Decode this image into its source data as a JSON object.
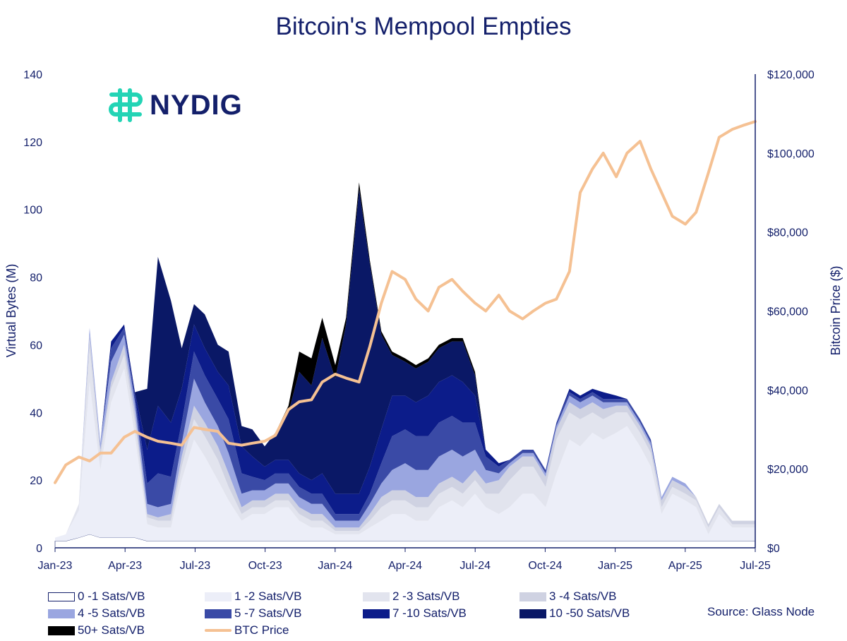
{
  "page": {
    "source": "Source: Glass Node"
  },
  "logo": {
    "text": "NYDIG",
    "icon": "nydig-logo-icon",
    "color": "#23d4b5"
  },
  "colors": {
    "band_0_1": "#ffffff",
    "band_1_2": "#eceef8",
    "band_2_3": "#e2e4ee",
    "band_3_4": "#cfd2e2",
    "band_4_5": "#9aa6e0",
    "band_5_7": "#3a4aa6",
    "band_7_10": "#0c1c8a",
    "band_10_50": "#0a1866",
    "band_50p": "#000000",
    "btc_price": "#f5c193",
    "text": "#14206b"
  },
  "chart_data": {
    "type": "area",
    "title": "Bitcoin's Mempool Empties",
    "ylabel": "Virtual Bytes (M)",
    "y2label": "Bitcoin Price ($)",
    "ylim": [
      0,
      140
    ],
    "y2lim": [
      0,
      120000
    ],
    "yticks": [
      "0",
      "20",
      "40",
      "60",
      "80",
      "100",
      "120",
      "140"
    ],
    "y2ticks": [
      "$0",
      "$20,000",
      "$40,000",
      "$60,000",
      "$80,000",
      "$100,000",
      "$120,000"
    ],
    "xlim": [
      "2023-01-01",
      "2025-07-01"
    ],
    "xticks": [
      "Jan-23",
      "Apr-23",
      "Jul-23",
      "Oct-23",
      "Jan-24",
      "Apr-24",
      "Jul-24",
      "Oct-24",
      "Jan-25",
      "Apr-25",
      "Jul-25"
    ],
    "grid": false,
    "legend_position": "bottom",
    "x": [
      "2023-01-01",
      "2023-01-15",
      "2023-02-01",
      "2023-02-15",
      "2023-03-01",
      "2023-03-15",
      "2023-04-01",
      "2023-04-15",
      "2023-05-01",
      "2023-05-15",
      "2023-06-01",
      "2023-06-15",
      "2023-07-01",
      "2023-07-15",
      "2023-08-01",
      "2023-08-15",
      "2023-09-01",
      "2023-09-15",
      "2023-10-01",
      "2023-10-15",
      "2023-11-01",
      "2023-11-15",
      "2023-12-01",
      "2023-12-15",
      "2024-01-01",
      "2024-01-15",
      "2024-02-01",
      "2024-02-15",
      "2024-03-01",
      "2024-03-15",
      "2024-04-01",
      "2024-04-15",
      "2024-05-01",
      "2024-05-15",
      "2024-06-01",
      "2024-06-15",
      "2024-07-01",
      "2024-07-15",
      "2024-08-01",
      "2024-08-15",
      "2024-09-01",
      "2024-09-15",
      "2024-10-01",
      "2024-10-15",
      "2024-11-01",
      "2024-11-15",
      "2024-12-01",
      "2024-12-15",
      "2025-01-01",
      "2025-01-15",
      "2025-02-01",
      "2025-02-15",
      "2025-03-01",
      "2025-03-15",
      "2025-04-01",
      "2025-04-15",
      "2025-05-01",
      "2025-05-15",
      "2025-06-01",
      "2025-06-15",
      "2025-07-01"
    ],
    "series": [
      {
        "name": "0 -1 Sats/VB",
        "color": "#ffffff",
        "values": [
          2,
          2,
          3,
          4,
          3,
          3,
          3,
          3,
          2,
          2,
          2,
          2,
          2,
          2,
          2,
          2,
          2,
          2,
          2,
          2,
          2,
          2,
          2,
          2,
          2,
          2,
          2,
          2,
          2,
          2,
          2,
          2,
          2,
          2,
          2,
          2,
          2,
          2,
          2,
          2,
          2,
          2,
          2,
          2,
          2,
          2,
          2,
          2,
          2,
          2,
          2,
          2,
          2,
          2,
          2,
          2,
          2,
          2,
          2,
          2,
          2
        ]
      },
      {
        "name": "1 -2 Sats/VB",
        "color": "#eceef8",
        "values": [
          1,
          2,
          8,
          45,
          20,
          40,
          50,
          30,
          5,
          4,
          4,
          18,
          30,
          25,
          18,
          12,
          6,
          8,
          8,
          10,
          10,
          6,
          4,
          4,
          2,
          2,
          2,
          4,
          6,
          8,
          8,
          6,
          6,
          10,
          12,
          10,
          14,
          10,
          8,
          10,
          14,
          14,
          10,
          20,
          30,
          28,
          32,
          30,
          32,
          34,
          28,
          22,
          8,
          14,
          12,
          10,
          2,
          8,
          4,
          4,
          4
        ]
      },
      {
        "name": "2 -3 Sats/VB",
        "color": "#e2e4ee",
        "values": [
          0,
          0,
          2,
          10,
          4,
          4,
          4,
          4,
          2,
          2,
          2,
          4,
          6,
          6,
          6,
          4,
          2,
          2,
          2,
          2,
          2,
          2,
          2,
          2,
          1,
          1,
          1,
          2,
          4,
          4,
          4,
          4,
          4,
          4,
          4,
          4,
          4,
          4,
          6,
          8,
          8,
          8,
          6,
          10,
          8,
          8,
          6,
          6,
          6,
          4,
          4,
          4,
          2,
          2,
          2,
          2,
          2,
          2,
          1,
          1,
          1
        ]
      },
      {
        "name": "3 -4 Sats/VB",
        "color": "#cfd2e2",
        "values": [
          0,
          0,
          0,
          4,
          2,
          2,
          3,
          3,
          1,
          1,
          2,
          3,
          4,
          4,
          4,
          4,
          2,
          2,
          2,
          2,
          2,
          2,
          2,
          2,
          1,
          1,
          1,
          2,
          3,
          3,
          3,
          3,
          3,
          3,
          3,
          3,
          3,
          3,
          4,
          4,
          3,
          3,
          3,
          3,
          3,
          3,
          3,
          3,
          2,
          2,
          2,
          2,
          2,
          2,
          2,
          1,
          1,
          1,
          1,
          1,
          1
        ]
      },
      {
        "name": "4 -5 Sats/VB",
        "color": "#9aa6e0",
        "values": [
          0,
          0,
          0,
          2,
          2,
          6,
          3,
          3,
          3,
          3,
          3,
          4,
          8,
          6,
          6,
          6,
          4,
          3,
          3,
          3,
          3,
          3,
          3,
          3,
          2,
          2,
          2,
          3,
          4,
          6,
          8,
          8,
          8,
          8,
          8,
          8,
          6,
          4,
          2,
          1,
          1,
          1,
          1,
          1,
          2,
          2,
          2,
          2,
          1,
          1,
          1,
          1,
          1,
          1,
          1,
          0,
          0,
          0,
          0,
          0,
          0
        ]
      },
      {
        "name": "5 -7 Sats/VB",
        "color": "#3a4aa6",
        "values": [
          0,
          0,
          0,
          0,
          0,
          4,
          2,
          2,
          6,
          10,
          8,
          6,
          8,
          8,
          8,
          10,
          6,
          4,
          3,
          3,
          3,
          3,
          3,
          3,
          2,
          2,
          2,
          3,
          6,
          10,
          10,
          10,
          10,
          10,
          10,
          10,
          8,
          4,
          2,
          1,
          1,
          1,
          1,
          1,
          1,
          1,
          1,
          1,
          1,
          1,
          1,
          1,
          0,
          0,
          0,
          0,
          0,
          0,
          0,
          0,
          0
        ]
      },
      {
        "name": "7 -10 Sats/VB",
        "color": "#0c1c8a",
        "values": [
          0,
          0,
          0,
          0,
          0,
          2,
          1,
          1,
          10,
          20,
          16,
          10,
          8,
          8,
          8,
          10,
          8,
          6,
          4,
          4,
          4,
          4,
          4,
          6,
          6,
          6,
          6,
          8,
          10,
          12,
          10,
          10,
          12,
          12,
          12,
          12,
          8,
          2,
          1,
          0,
          0,
          0,
          0,
          0,
          1,
          1,
          1,
          2,
          1,
          0,
          0,
          0,
          0,
          0,
          0,
          0,
          0,
          0,
          0,
          0,
          0
        ]
      },
      {
        "name": "10 -50 Sats/VB",
        "color": "#0a1866",
        "values": [
          0,
          0,
          0,
          0,
          0,
          0,
          0,
          0,
          18,
          44,
          36,
          12,
          6,
          10,
          8,
          10,
          6,
          8,
          6,
          8,
          14,
          30,
          28,
          40,
          34,
          50,
          90,
          60,
          28,
          12,
          10,
          10,
          10,
          10,
          10,
          12,
          6,
          0,
          0,
          0,
          0,
          0,
          0,
          0,
          0,
          0,
          0,
          0,
          0,
          0,
          0,
          0,
          0,
          0,
          0,
          0,
          0,
          0,
          0,
          0,
          0
        ]
      },
      {
        "name": "50+ Sats/VB",
        "color": "#000000",
        "values": [
          0,
          0,
          0,
          0,
          0,
          0,
          0,
          0,
          0,
          0,
          0,
          0,
          0,
          0,
          0,
          0,
          0,
          0,
          0,
          0,
          2,
          6,
          8,
          6,
          4,
          2,
          2,
          1,
          1,
          1,
          1,
          1,
          1,
          1,
          1,
          1,
          1,
          0,
          0,
          0,
          0,
          0,
          0,
          0,
          0,
          0,
          0,
          0,
          0,
          0,
          0,
          0,
          0,
          0,
          0,
          0,
          0,
          0,
          0,
          0,
          0
        ]
      }
    ],
    "line_series": {
      "name": "BTC Price",
      "color": "#f5c193",
      "axis": "right",
      "values": [
        16500,
        21000,
        23000,
        22000,
        24000,
        24000,
        28000,
        29500,
        28000,
        27000,
        26500,
        26000,
        30500,
        30000,
        29500,
        26500,
        26000,
        26500,
        27000,
        28500,
        35000,
        37000,
        37500,
        42000,
        44000,
        43000,
        42000,
        51000,
        62000,
        70000,
        68000,
        63000,
        60000,
        66000,
        68000,
        65000,
        62000,
        60000,
        64000,
        60000,
        58000,
        60000,
        62000,
        63000,
        70000,
        90000,
        96000,
        100000,
        94000,
        100000,
        103000,
        96000,
        90000,
        84000,
        82000,
        85000,
        95000,
        104000,
        106000,
        107000,
        108000
      ]
    }
  },
  "legend": [
    {
      "label": "0 -1 Sats/VB",
      "type": "box",
      "color": "#ffffff"
    },
    {
      "label": "1 -2 Sats/VB",
      "type": "box",
      "color": "#eceef8"
    },
    {
      "label": "2 -3 Sats/VB",
      "type": "box",
      "color": "#e2e4ee"
    },
    {
      "label": "3 -4 Sats/VB",
      "type": "box",
      "color": "#cfd2e2"
    },
    {
      "label": "4 -5 Sats/VB",
      "type": "box",
      "color": "#9aa6e0"
    },
    {
      "label": "5 -7 Sats/VB",
      "type": "box",
      "color": "#3a4aa6"
    },
    {
      "label": "7 -10 Sats/VB",
      "type": "box",
      "color": "#0c1c8a"
    },
    {
      "label": "10 -50 Sats/VB",
      "type": "box",
      "color": "#0a1866"
    },
    {
      "label": "50+ Sats/VB",
      "type": "box",
      "color": "#000000"
    },
    {
      "label": "BTC Price",
      "type": "line",
      "color": "#f5c193"
    }
  ]
}
